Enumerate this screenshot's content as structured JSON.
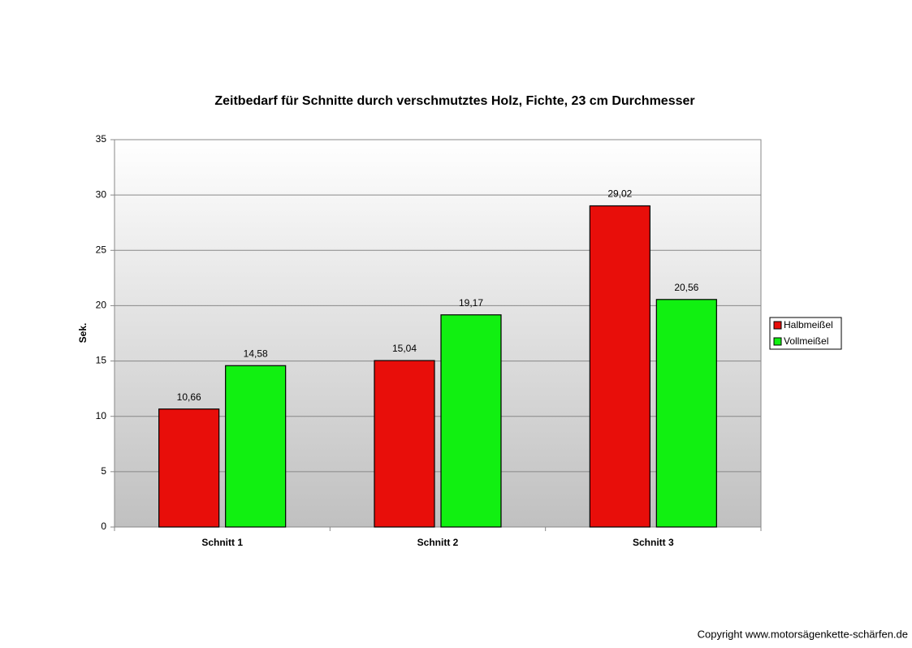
{
  "chart_data": {
    "type": "bar",
    "title": "Zeitbedarf für Schnitte durch verschmutztes Holz, Fichte, 23 cm Durchmesser",
    "y_label": "Sek.",
    "categories": [
      "Schnitt 1",
      "Schnitt 2",
      "Schnitt 3"
    ],
    "series": [
      {
        "name": "Halbmeißel",
        "color": "#e80e0a",
        "values": [
          10.66,
          15.04,
          29.02
        ],
        "value_labels": [
          "10,66",
          "15,04",
          "29,02"
        ]
      },
      {
        "name": "Vollmeißel",
        "color": "#11f011",
        "values": [
          14.58,
          19.17,
          20.56
        ],
        "value_labels": [
          "14,58",
          "19,17",
          "20,56"
        ]
      }
    ],
    "ylim": [
      0,
      35
    ],
    "yticks": [
      0,
      5,
      10,
      15,
      20,
      25,
      30,
      35
    ],
    "grid": true,
    "legend": "right"
  },
  "copyright": "Copyright www.motorsägenkette-schärfen.de"
}
